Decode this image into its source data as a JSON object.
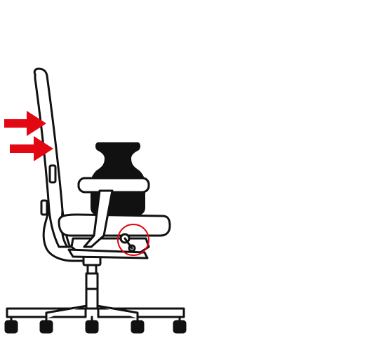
{
  "diagram": {
    "subject": "office-chair-side-view",
    "colors": {
      "outline": "#111111",
      "fill": "#ffffff",
      "weight": "#111111",
      "arrow": "#e30613",
      "highlight_circle": "#e30613"
    },
    "arrows": [
      {
        "name": "backrest-pressure-arrow-upper",
        "direction": "right"
      },
      {
        "name": "backrest-pressure-arrow-lower",
        "direction": "right"
      }
    ],
    "caster_count": 5
  }
}
